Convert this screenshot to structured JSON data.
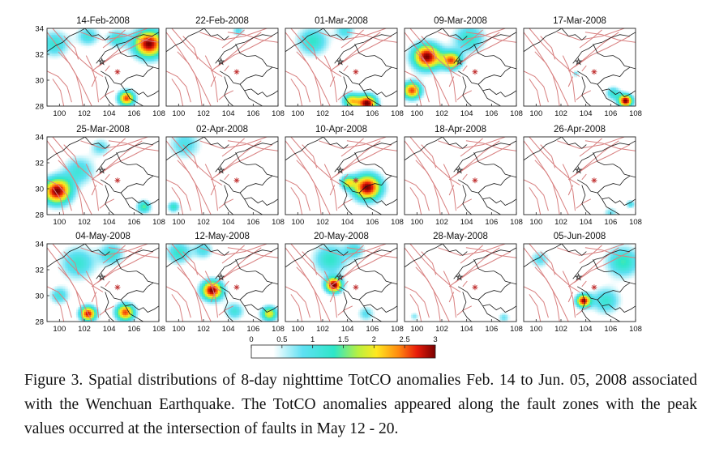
{
  "figure": {
    "panels": [
      {
        "title": "14-Feb-2008",
        "hotspots": [
          {
            "lon": 107.2,
            "lat": 32.8,
            "value": 3.0,
            "r": 1.3
          },
          {
            "lon": 105.4,
            "lat": 28.6,
            "value": 2.6,
            "r": 0.7
          },
          {
            "lon": 99.6,
            "lat": 32.8,
            "value": 1.2,
            "r": 1.2
          },
          {
            "lon": 102.3,
            "lat": 33.4,
            "value": 1.1,
            "r": 0.9
          },
          {
            "lon": 104.6,
            "lat": 33.2,
            "value": 1.2,
            "r": 0.8
          }
        ]
      },
      {
        "title": "22-Feb-2008",
        "hotspots": [
          {
            "lon": 104.8,
            "lat": 33.8,
            "value": 0.9,
            "r": 0.5
          }
        ]
      },
      {
        "title": "01-Mar-2008",
        "hotspots": [
          {
            "lon": 105.6,
            "lat": 28.2,
            "value": 3.0,
            "r": 0.8
          },
          {
            "lon": 104.3,
            "lat": 28.4,
            "value": 2.0,
            "r": 0.7
          },
          {
            "lon": 101.2,
            "lat": 33.0,
            "value": 1.3,
            "r": 1.3
          },
          {
            "lon": 103.8,
            "lat": 33.8,
            "value": 1.0,
            "r": 0.8
          }
        ]
      },
      {
        "title": "09-Mar-2008",
        "hotspots": [
          {
            "lon": 100.8,
            "lat": 31.8,
            "value": 3.0,
            "r": 1.2
          },
          {
            "lon": 102.8,
            "lat": 31.5,
            "value": 2.4,
            "r": 0.8
          },
          {
            "lon": 104.2,
            "lat": 33.2,
            "value": 1.3,
            "r": 1.3
          },
          {
            "lon": 99.6,
            "lat": 29.2,
            "value": 2.6,
            "r": 0.8
          }
        ]
      },
      {
        "title": "17-Mar-2008",
        "hotspots": [
          {
            "lon": 107.2,
            "lat": 28.4,
            "value": 3.0,
            "r": 0.6
          },
          {
            "lon": 106.2,
            "lat": 29.0,
            "value": 1.2,
            "r": 0.6
          },
          {
            "lon": 103.2,
            "lat": 30.5,
            "value": 0.8,
            "r": 0.3
          }
        ]
      },
      {
        "title": "25-Mar-2008",
        "hotspots": [
          {
            "lon": 99.8,
            "lat": 29.8,
            "value": 3.0,
            "r": 1.2
          },
          {
            "lon": 101.6,
            "lat": 31.4,
            "value": 1.1,
            "r": 1.3
          },
          {
            "lon": 103.3,
            "lat": 33.2,
            "value": 0.9,
            "r": 0.8
          },
          {
            "lon": 106.8,
            "lat": 28.6,
            "value": 1.5,
            "r": 0.6
          }
        ]
      },
      {
        "title": "02-Apr-2008",
        "hotspots": [
          {
            "lon": 100.5,
            "lat": 33.4,
            "value": 1.0,
            "r": 1.3
          },
          {
            "lon": 99.6,
            "lat": 28.6,
            "value": 1.3,
            "r": 0.5
          }
        ]
      },
      {
        "title": "10-Apr-2008",
        "hotspots": [
          {
            "lon": 105.6,
            "lat": 30.1,
            "value": 3.0,
            "r": 1.2
          },
          {
            "lon": 104.0,
            "lat": 30.5,
            "value": 1.6,
            "r": 0.6
          }
        ]
      },
      {
        "title": "18-Apr-2008",
        "hotspots": []
      },
      {
        "title": "26-Apr-2008",
        "hotspots": [
          {
            "lon": 106.0,
            "lat": 28.1,
            "value": 0.8,
            "r": 0.6
          },
          {
            "lon": 107.6,
            "lat": 28.8,
            "value": 1.0,
            "r": 0.4
          }
        ]
      },
      {
        "title": "04-May-2008",
        "hotspots": [
          {
            "lon": 102.3,
            "lat": 28.6,
            "value": 2.8,
            "r": 0.7
          },
          {
            "lon": 105.3,
            "lat": 28.7,
            "value": 2.6,
            "r": 0.8
          },
          {
            "lon": 101.5,
            "lat": 32.5,
            "value": 1.2,
            "r": 1.5
          },
          {
            "lon": 104.2,
            "lat": 33.2,
            "value": 1.2,
            "r": 1.0
          },
          {
            "lon": 100.0,
            "lat": 30.0,
            "value": 1.1,
            "r": 0.8
          }
        ]
      },
      {
        "title": "12-May-2008",
        "hotspots": [
          {
            "lon": 102.7,
            "lat": 30.4,
            "value": 3.0,
            "r": 0.9
          },
          {
            "lon": 100.0,
            "lat": 33.3,
            "value": 1.3,
            "r": 1.0
          },
          {
            "lon": 102.0,
            "lat": 33.5,
            "value": 1.0,
            "r": 0.8
          },
          {
            "lon": 107.3,
            "lat": 28.6,
            "value": 2.0,
            "r": 0.7
          },
          {
            "lon": 104.5,
            "lat": 28.8,
            "value": 1.1,
            "r": 0.8
          }
        ]
      },
      {
        "title": "20-May-2008",
        "hotspots": [
          {
            "lon": 102.9,
            "lat": 30.8,
            "value": 3.0,
            "r": 0.7
          },
          {
            "lon": 102.6,
            "lat": 32.8,
            "value": 1.3,
            "r": 1.4
          },
          {
            "lon": 104.6,
            "lat": 33.5,
            "value": 1.0,
            "r": 0.8
          },
          {
            "lon": 105.5,
            "lat": 28.6,
            "value": 0.9,
            "r": 0.7
          }
        ]
      },
      {
        "title": "28-May-2008",
        "hotspots": [
          {
            "lon": 107.0,
            "lat": 28.3,
            "value": 0.8,
            "r": 0.5
          },
          {
            "lon": 99.8,
            "lat": 28.4,
            "value": 0.7,
            "r": 0.4
          }
        ]
      },
      {
        "title": "05-Jun-2008",
        "hotspots": [
          {
            "lon": 103.8,
            "lat": 29.6,
            "value": 2.8,
            "r": 0.6
          },
          {
            "lon": 107.0,
            "lat": 32.6,
            "value": 1.4,
            "r": 1.4
          },
          {
            "lon": 105.6,
            "lat": 29.6,
            "value": 1.2,
            "r": 1.2
          },
          {
            "lon": 100.3,
            "lat": 32.8,
            "value": 0.9,
            "r": 0.8
          }
        ]
      }
    ],
    "x_ticks": [
      "100",
      "102",
      "104",
      "106",
      "108"
    ],
    "y_ticks": [
      "34",
      "32",
      "30",
      "28"
    ],
    "colorbar_ticks": [
      "0",
      "0.5",
      "1",
      "1.5",
      "2",
      "2.5",
      "3"
    ],
    "colors": {
      "fault": "#d88080",
      "border": "#1a1a1a",
      "epicenter": "#c03030"
    }
  },
  "caption": "Figure 3. Spatial distributions of 8-day nighttime TotCO anomalies Feb. 14 to Jun. 05, 2008 associated with the Wenchuan Earthquake. The TotCO anomalies appeared along the fault zones with the peak values occurred at the intersection of faults in May 12 - 20."
}
